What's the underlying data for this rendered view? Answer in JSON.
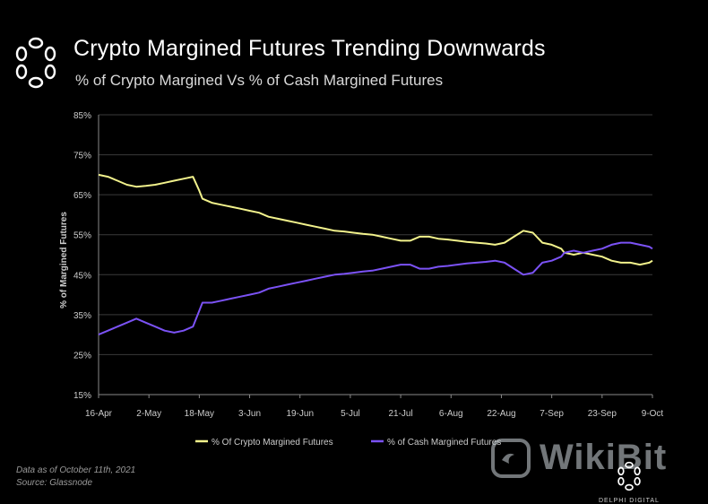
{
  "header": {
    "title": "Crypto Margined Futures Trending Downwards",
    "subtitle": "% of Crypto Margined Vs % of Cash Margined Futures"
  },
  "footnote": {
    "line1": "Data as of October 11th, 2021",
    "line2": "Source: Glassnode"
  },
  "watermark": {
    "text": "WikiBit",
    "icon": "wikibit-logo-icon"
  },
  "brand": {
    "text": "DELPHI DIGITAL",
    "icon": "delphi-logo-icon"
  },
  "colors": {
    "crypto": "#f2f28c",
    "cash": "#7b52f5",
    "grid": "#3a3a3a",
    "axis": "#cccccc"
  },
  "chart_data": {
    "type": "line",
    "ylabel": "% of Margined Futures",
    "xlabel": "",
    "ylim": [
      15,
      85
    ],
    "y_ticks": [
      "15%",
      "25%",
      "35%",
      "45%",
      "55%",
      "65%",
      "75%",
      "85%"
    ],
    "x_ticks": [
      "16-Apr",
      "2-May",
      "18-May",
      "3-Jun",
      "19-Jun",
      "5-Jul",
      "21-Jul",
      "6-Aug",
      "22-Aug",
      "7-Sep",
      "23-Sep",
      "9-Oct"
    ],
    "grid": true,
    "legend_position": "bottom",
    "x_days": [
      0,
      3,
      6,
      9,
      12,
      15,
      18,
      21,
      24,
      27,
      30,
      32,
      33,
      36,
      39,
      42,
      45,
      48,
      51,
      54,
      57,
      60,
      63,
      66,
      69,
      72,
      75,
      78,
      81,
      84,
      87,
      90,
      93,
      96,
      99,
      102,
      105,
      108,
      111,
      114,
      117,
      120,
      123,
      126,
      129,
      132,
      135,
      138,
      141,
      144,
      147,
      148,
      151,
      154,
      157,
      160,
      163,
      166,
      169,
      172,
      175,
      176
    ],
    "series": [
      {
        "name": "% Of Crypto Margined Futures",
        "values": [
          70.0,
          69.5,
          68.5,
          67.5,
          67.0,
          67.2,
          67.5,
          68.0,
          68.5,
          69.0,
          69.5,
          66.0,
          64.0,
          63.0,
          62.5,
          62.0,
          61.5,
          61.0,
          60.5,
          59.5,
          59.0,
          58.5,
          58.0,
          57.5,
          57.0,
          56.5,
          56.0,
          55.8,
          55.5,
          55.2,
          55.0,
          54.5,
          54.0,
          53.5,
          53.5,
          54.5,
          54.5,
          54.0,
          53.8,
          53.5,
          53.2,
          53.0,
          52.8,
          52.5,
          53.0,
          54.5,
          56.0,
          55.5,
          53.0,
          52.5,
          51.5,
          50.5,
          50.0,
          50.5,
          50.0,
          49.5,
          48.5,
          48.0,
          48.0,
          47.5,
          48.0,
          48.5
        ]
      },
      {
        "name": "% of Cash Margined Futures",
        "values": [
          30.0,
          31.0,
          32.0,
          33.0,
          34.0,
          33.0,
          32.0,
          31.0,
          30.5,
          31.0,
          32.0,
          36.0,
          38.0,
          38.0,
          38.5,
          39.0,
          39.5,
          40.0,
          40.5,
          41.5,
          42.0,
          42.5,
          43.0,
          43.5,
          44.0,
          44.5,
          45.0,
          45.2,
          45.5,
          45.8,
          46.0,
          46.5,
          47.0,
          47.5,
          47.5,
          46.5,
          46.5,
          47.0,
          47.2,
          47.5,
          47.8,
          48.0,
          48.2,
          48.5,
          48.0,
          46.5,
          45.0,
          45.5,
          48.0,
          48.5,
          49.5,
          50.5,
          51.0,
          50.5,
          51.0,
          51.5,
          52.5,
          53.0,
          53.0,
          52.5,
          52.0,
          51.5
        ]
      }
    ]
  }
}
